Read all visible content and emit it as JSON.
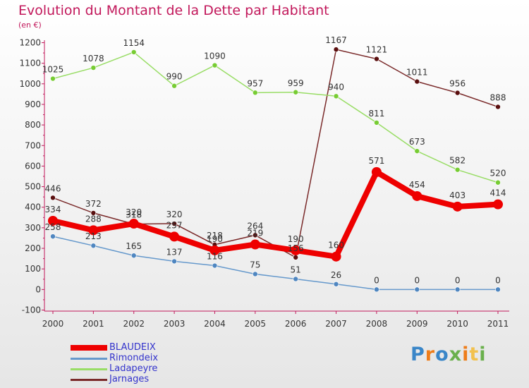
{
  "title": "Evolution du Montant de la Dette par Habitant",
  "subtitle": "(en €)",
  "brand": "Proxiti",
  "chart_data": {
    "type": "line",
    "categories": [
      "2000",
      "2001",
      "2002",
      "2003",
      "2004",
      "2005",
      "2006",
      "2007",
      "2008",
      "2009",
      "2010",
      "2011"
    ],
    "ylim": [
      -100,
      1200
    ],
    "yticks": [
      -100,
      0,
      100,
      200,
      300,
      400,
      500,
      600,
      700,
      800,
      900,
      1000,
      1100,
      1200
    ],
    "grid": false,
    "legend_position": "bottom-left",
    "series": [
      {
        "name": "Jarnages",
        "color": "#7a2a2a",
        "point_color": "#5a0f0f",
        "values": [
          446,
          372,
          318,
          320,
          218,
          264,
          156,
          1167,
          1121,
          1011,
          956,
          888
        ],
        "labels": [
          "446",
          "372",
          "318",
          "320",
          "218",
          "264",
          "156",
          "1167",
          "1121",
          "1011",
          "956",
          "888"
        ]
      },
      {
        "name": "Ladapeyre",
        "color": "#99dd66",
        "point_color": "#77cc33",
        "values": [
          1025,
          1078,
          1154,
          990,
          1090,
          957,
          959,
          940,
          811,
          673,
          582,
          520
        ],
        "labels": [
          "1025",
          "1078",
          "1154",
          "990",
          "1090",
          "957",
          "959",
          "940",
          "811",
          "673",
          "582",
          "520"
        ]
      },
      {
        "name": "Rimondeix",
        "color": "#6699cc",
        "point_color": "#4f86c0",
        "values": [
          258,
          213,
          165,
          137,
          116,
          75,
          51,
          26,
          0,
          0,
          0,
          0
        ],
        "labels": [
          "258",
          "213",
          "165",
          "137",
          "116",
          "75",
          "51",
          "26",
          "0",
          "0",
          "0",
          "0"
        ]
      },
      {
        "name": "BLAUDEIX",
        "color": "#ee0000",
        "point_color": "#ee0000",
        "values": [
          334,
          288,
          320,
          257,
          190,
          219,
          190,
          160,
          571,
          454,
          403,
          414
        ],
        "labels": [
          "334",
          "288",
          "320",
          "257",
          "190",
          "219",
          "190",
          "160",
          "571",
          "454",
          "403",
          "414"
        ]
      }
    ]
  },
  "legend": [
    "BLAUDEIX",
    "Rimondeix",
    "Ladapeyre",
    "Jarnages"
  ]
}
